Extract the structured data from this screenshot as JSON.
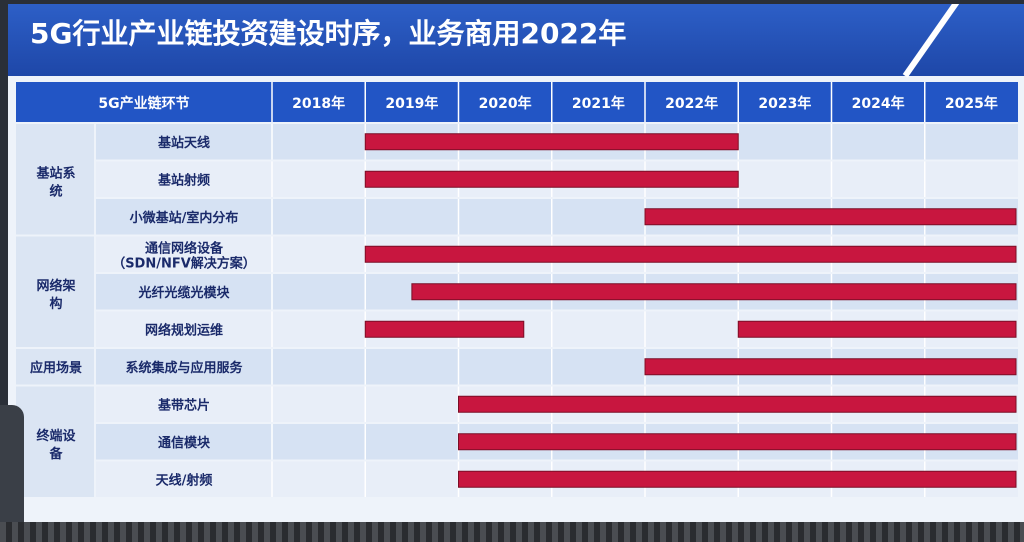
{
  "title": "5G行业产业链投资建设时序，业务商用2022年",
  "chart_data": {
    "type": "table",
    "header_label": "5G产业链环节",
    "years": [
      "2018年",
      "2019年",
      "2020年",
      "2021年",
      "2022年",
      "2023年",
      "2024年",
      "2025年"
    ],
    "groups": [
      {
        "label": "基站系统",
        "items": [
          "基站天线",
          "基站射频",
          "小微基站/室内分布"
        ]
      },
      {
        "label": "网络架构",
        "items": [
          "通信网络设备（SDN/NFV解决方案）",
          "光纤光缆光模块",
          "网络规划运维"
        ]
      },
      {
        "label": "应用场景",
        "items": [
          "系统集成与应用服务"
        ]
      },
      {
        "label": "终端设备",
        "items": [
          "基带芯片",
          "通信模块",
          "天线/射频"
        ]
      }
    ],
    "bars": [
      {
        "item": "基站天线",
        "start": 2019.0,
        "end": 2023.0
      },
      {
        "item": "基站射频",
        "start": 2019.0,
        "end": 2023.0
      },
      {
        "item": "小微基站/室内分布",
        "start": 2022.0,
        "end": 2026.0
      },
      {
        "item": "通信网络设备（SDN/NFV解决方案）",
        "start": 2019.0,
        "end": 2026.0
      },
      {
        "item": "光纤光缆光模块",
        "start": 2019.5,
        "end": 2026.0
      },
      {
        "item": "网络规划运维",
        "start": 2019.0,
        "end": 2020.7
      },
      {
        "item": "网络规划运维",
        "start": 2023.0,
        "end": 2026.0
      },
      {
        "item": "系统集成与应用服务",
        "start": 2022.0,
        "end": 2026.0
      },
      {
        "item": "基带芯片",
        "start": 2020.0,
        "end": 2026.0
      },
      {
        "item": "通信模块",
        "start": 2020.0,
        "end": 2026.0
      },
      {
        "item": "天线/射频",
        "start": 2020.0,
        "end": 2026.0
      }
    ],
    "bar_color": "#c8163f",
    "header_color": "#2255c5"
  }
}
